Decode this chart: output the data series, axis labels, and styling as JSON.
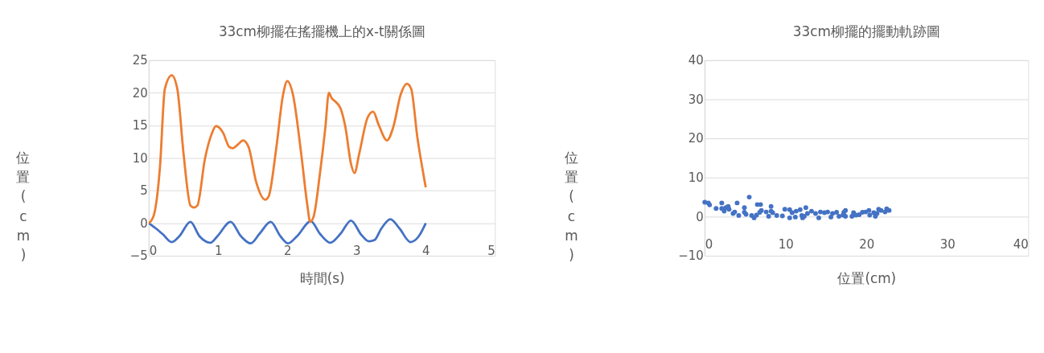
{
  "chart_data": [
    {
      "type": "line",
      "title": "33cm柳擺在搖擺機上的x-t關係圖",
      "xlabel": "時間(s)",
      "ylabel": "位置(cm)",
      "xlim": [
        0,
        5
      ],
      "xticks": [
        0,
        1,
        2,
        3,
        4,
        5
      ],
      "ylim": [
        -5,
        25
      ],
      "yticks": [
        -5,
        0,
        5,
        10,
        15,
        20,
        25
      ],
      "grid": "y",
      "legend": false,
      "marker": "none",
      "line_style": "solid",
      "series": [
        {
          "color": "#4472c4",
          "x": [
            0,
            0.1,
            0.2,
            0.33,
            0.44,
            0.6,
            0.73,
            0.89,
            0.99,
            1.18,
            1.33,
            1.47,
            1.6,
            1.76,
            1.9,
            2.01,
            2.14,
            2.34,
            2.47,
            2.62,
            2.77,
            2.92,
            3.07,
            3.18,
            3.26,
            3.36,
            3.49,
            3.62,
            3.78,
            3.9,
            4.0
          ],
          "values": [
            0,
            -0.8,
            -1.7,
            -2.9,
            -2.0,
            0.2,
            -2.0,
            -3.0,
            -2.0,
            0.2,
            -2.0,
            -3.1,
            -1.6,
            0.2,
            -2.0,
            -3.1,
            -2.0,
            0.3,
            -1.6,
            -3.0,
            -1.6,
            0.4,
            -1.8,
            -2.8,
            -2.6,
            -0.8,
            0.6,
            -0.8,
            -2.9,
            -2.0,
            0
          ]
        },
        {
          "color": "#ed7d31",
          "x": [
            0,
            0.07,
            0.16,
            0.23,
            0.33,
            0.41,
            0.5,
            0.6,
            0.65,
            0.7,
            0.81,
            0.9,
            0.97,
            1.07,
            1.16,
            1.21,
            1.29,
            1.36,
            1.44,
            1.55,
            1.68,
            1.73,
            1.84,
            1.94,
            2.0,
            2.08,
            2.2,
            2.29,
            2.33,
            2.38,
            2.47,
            2.55,
            2.6,
            2.64,
            2.7,
            2.77,
            2.84,
            2.92,
            2.97,
            3.04,
            3.16,
            3.24,
            3.32,
            3.44,
            3.53,
            3.64,
            3.73,
            3.79,
            3.88,
            3.96,
            4.0
          ],
          "values": [
            0,
            1.2,
            8.7,
            20.6,
            22.7,
            20.6,
            10.7,
            2.7,
            2.4,
            2.7,
            9.9,
            13.5,
            14.9,
            13.9,
            11.7,
            11.5,
            12.1,
            12.7,
            11.7,
            6.3,
            3.6,
            4.1,
            11.5,
            19.8,
            21.8,
            19.8,
            10.7,
            2.7,
            0.2,
            1.0,
            7.5,
            14.7,
            20.0,
            19.2,
            18.6,
            17.6,
            14.7,
            9.1,
            7.7,
            10.7,
            16.2,
            17.1,
            15.1,
            12.7,
            14.7,
            19.8,
            21.4,
            20.6,
            13.1,
            7.9,
            5.5
          ]
        }
      ]
    },
    {
      "type": "scatter",
      "title": "33cm柳擺的擺動軌跡圖",
      "xlabel": "位置(cm)",
      "ylabel": "位置(cm)",
      "xlim": [
        0,
        40
      ],
      "xticks": [
        0,
        10,
        20,
        30,
        40
      ],
      "ylim": [
        -10,
        40
      ],
      "yticks": [
        -10,
        0,
        10,
        20,
        30,
        40
      ],
      "grid": "y",
      "legend": false,
      "marker": "circle",
      "series": [
        {
          "color": "#4472c4",
          "x": [
            0,
            0.45,
            0.6,
            1.4,
            2.1,
            2.1,
            2.4,
            2.6,
            2.9,
            3.0,
            3.5,
            3.7,
            4.0,
            4.2,
            4.9,
            4.9,
            5.1,
            5.5,
            5.8,
            6.1,
            6.4,
            6.5,
            6.8,
            6.9,
            7.0,
            7.6,
            7.9,
            8.2,
            8.2,
            8.4,
            8.9,
            9.6,
            9.9,
            10.5,
            10.5,
            10.8,
            11.2,
            11.3,
            11.8,
            12.0,
            12.1,
            12.3,
            12.5,
            12.7,
            13.2,
            13.7,
            14.1,
            14.3,
            14.8,
            15.2,
            15.6,
            15.8,
            16.3,
            16.6,
            17.1,
            17.2,
            17.4,
            17.4,
            18.2,
            18.4,
            18.7,
            19.1,
            19.5,
            19.9,
            20.3,
            20.4,
            20.9,
            21.1,
            21.3,
            21.5,
            21.8,
            22.3,
            22.5,
            22.8
          ],
          "values": [
            3.7,
            3.5,
            3.0,
            2.1,
            3.5,
            2.1,
            1.4,
            2.3,
            2.6,
            1.9,
            0.8,
            1.2,
            3.5,
            0.3,
            2.3,
            1.1,
            0.6,
            5.0,
            0.3,
            -0.3,
            0.4,
            3.1,
            1.1,
            3.1,
            1.6,
            1.2,
            0.1,
            2.6,
            1.4,
            1.0,
            0.3,
            0.2,
            1.9,
            1.8,
            -0.3,
            1.0,
            -0.1,
            1.4,
            1.8,
            0.3,
            -0.3,
            0.1,
            2.3,
            0.8,
            1.4,
            0.8,
            -0.3,
            1.2,
            1.0,
            1.2,
            -0.1,
            0.8,
            1.1,
            0.1,
            0.4,
            1.1,
            1.6,
            0.1,
            0.1,
            1.0,
            0.4,
            0.5,
            1.1,
            1.2,
            1.6,
            0.4,
            1.0,
            0.1,
            0.8,
            1.9,
            1.6,
            1.2,
            2.0,
            1.6
          ]
        }
      ]
    }
  ]
}
